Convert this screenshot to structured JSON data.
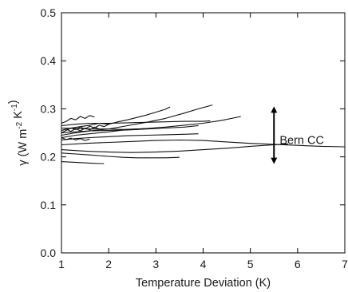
{
  "chart_data": {
    "type": "line",
    "title": "",
    "xlabel": "Temperature Deviation (K)",
    "ylabel": {
      "parts": [
        {
          "t": "γ (W m"
        },
        {
          "t": "-2",
          "sup": true
        },
        {
          "t": " K"
        },
        {
          "t": "-1",
          "sup": true
        },
        {
          "t": ")"
        }
      ]
    },
    "xlim": [
      1,
      7
    ],
    "ylim": [
      0.0,
      0.5
    ],
    "xticks": [
      1,
      2,
      3,
      4,
      5,
      6,
      7
    ],
    "yticks": [
      0.0,
      0.1,
      0.2,
      0.3,
      0.4,
      0.5
    ],
    "xtick_labels": [
      "1",
      "2",
      "3",
      "4",
      "5",
      "6",
      "7"
    ],
    "ytick_labels": [
      "0.0",
      "0.1",
      "0.2",
      "0.3",
      "0.4",
      "0.5"
    ],
    "grid": false,
    "legend": "none",
    "line_color": "#111111",
    "series": [
      {
        "x": [
          1.0,
          1.2,
          1.4,
          1.6,
          1.8,
          2.0,
          2.2,
          2.4,
          2.6,
          2.8,
          3.0,
          3.2,
          3.3
        ],
        "y": [
          0.255,
          0.26,
          0.263,
          0.266,
          0.27,
          0.268,
          0.273,
          0.277,
          0.282,
          0.287,
          0.293,
          0.299,
          0.304
        ]
      },
      {
        "x": [
          1.0,
          1.3,
          1.6,
          2.0,
          2.4,
          2.8,
          3.2,
          3.6,
          3.9,
          4.2
        ],
        "y": [
          0.245,
          0.25,
          0.254,
          0.258,
          0.265,
          0.272,
          0.28,
          0.291,
          0.3,
          0.308
        ]
      },
      {
        "x": [
          1.0,
          1.3,
          1.6,
          2.0,
          2.4,
          2.8,
          3.2,
          3.6,
          4.0,
          4.4,
          4.8
        ],
        "y": [
          0.24,
          0.245,
          0.248,
          0.252,
          0.257,
          0.259,
          0.262,
          0.266,
          0.27,
          0.276,
          0.284
        ]
      },
      {
        "x": [
          1.0,
          1.3,
          1.6,
          2.0,
          2.4,
          2.8,
          3.2,
          3.6,
          4.0,
          4.15
        ],
        "y": [
          0.265,
          0.268,
          0.27,
          0.27,
          0.271,
          0.272,
          0.273,
          0.274,
          0.274,
          0.275
        ]
      },
      {
        "x": [
          1.0,
          1.3,
          1.6,
          2.0,
          2.4,
          2.8,
          3.2,
          3.6,
          3.9
        ],
        "y": [
          0.25,
          0.252,
          0.254,
          0.255,
          0.256,
          0.258,
          0.26,
          0.262,
          0.265
        ]
      },
      {
        "x": [
          1.0,
          1.3,
          1.6,
          2.0,
          2.3,
          2.6,
          2.9,
          3.0
        ],
        "y": [
          0.26,
          0.259,
          0.258,
          0.258,
          0.257,
          0.258,
          0.259,
          0.26
        ]
      },
      {
        "x": [
          1.0,
          1.3,
          1.6,
          2.0,
          2.4,
          2.8,
          3.2,
          3.6,
          3.9
        ],
        "y": [
          0.235,
          0.238,
          0.24,
          0.242,
          0.244,
          0.245,
          0.246,
          0.247,
          0.248
        ]
      },
      {
        "x": [
          1.0,
          1.5,
          2.0,
          2.5,
          3.0,
          3.5,
          4.0,
          4.5,
          5.0,
          5.5,
          6.0,
          6.5,
          7.0
        ],
        "y": [
          0.225,
          0.228,
          0.23,
          0.232,
          0.234,
          0.235,
          0.234,
          0.231,
          0.228,
          0.226,
          0.224,
          0.222,
          0.221
        ]
      },
      {
        "x": [
          1.0,
          1.5,
          2.0,
          2.5,
          3.0,
          3.5,
          4.0,
          4.5,
          5.0,
          5.5,
          5.8
        ],
        "y": [
          0.215,
          0.212,
          0.21,
          0.209,
          0.21,
          0.212,
          0.215,
          0.218,
          0.222,
          0.225,
          0.227
        ]
      },
      {
        "x": [
          1.0,
          1.3,
          1.6,
          2.0,
          2.3,
          2.6,
          2.9,
          3.2,
          3.5
        ],
        "y": [
          0.208,
          0.206,
          0.204,
          0.201,
          0.199,
          0.198,
          0.198,
          0.198,
          0.199
        ]
      },
      {
        "x": [
          1.0,
          1.2,
          1.4,
          1.6,
          1.8,
          1.9
        ],
        "y": [
          0.19,
          0.189,
          0.188,
          0.187,
          0.186,
          0.186
        ]
      },
      {
        "x": [
          1.0,
          1.1,
          1.2,
          1.3,
          1.4,
          1.5,
          1.6,
          1.7,
          1.8,
          1.9,
          2.0
        ],
        "y": [
          0.25,
          0.255,
          0.26,
          0.257,
          0.262,
          0.258,
          0.264,
          0.26,
          0.266,
          0.263,
          0.268
        ]
      },
      {
        "x": [
          1.0,
          1.1,
          1.2,
          1.3,
          1.4,
          1.5,
          1.6,
          1.7
        ],
        "y": [
          0.27,
          0.274,
          0.28,
          0.277,
          0.284,
          0.28,
          0.286,
          0.283
        ]
      },
      {
        "x": [
          1.0,
          1.1,
          1.2,
          1.3,
          1.4,
          1.5,
          1.6
        ],
        "y": [
          0.24,
          0.236,
          0.239,
          0.235,
          0.238,
          0.234,
          0.237
        ]
      },
      {
        "x": [
          1.0,
          1.1,
          1.2,
          1.3,
          1.4,
          1.5,
          1.6,
          1.7,
          1.8
        ],
        "y": [
          0.255,
          0.258,
          0.253,
          0.259,
          0.254,
          0.26,
          0.256,
          0.262,
          0.258
        ]
      }
    ],
    "annotations": [
      {
        "text": "Bern CC",
        "x": 5.62,
        "y": 0.235,
        "arrow_x": 5.5,
        "arrow_y": [
          0.19,
          0.3
        ]
      }
    ]
  }
}
